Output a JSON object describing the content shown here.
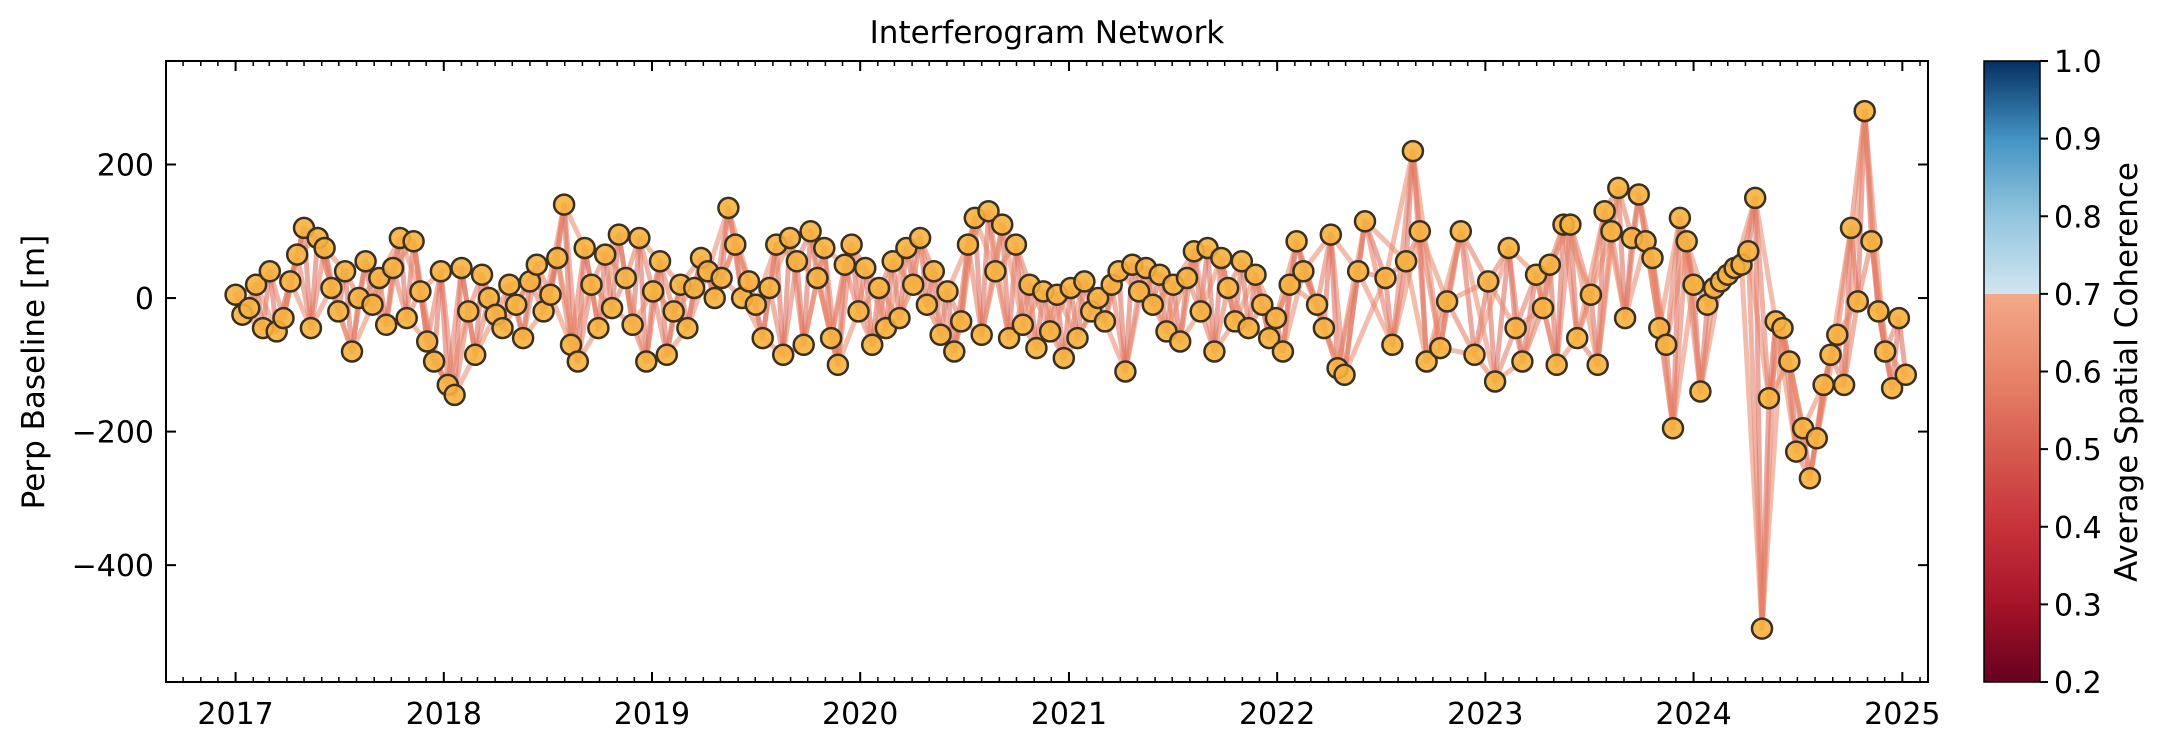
{
  "chart_data": {
    "type": "scatter",
    "title": "Interferogram Network",
    "xlabel": "",
    "ylabel": "Perp Baseline [m]",
    "x_tick_labels": [
      "2017",
      "2018",
      "2019",
      "2020",
      "2021",
      "2022",
      "2023",
      "2024",
      "2025"
    ],
    "y_tick_labels": [
      "200",
      "0",
      "−200",
      "−400"
    ],
    "y_ticks": [
      200,
      0,
      -200,
      -400
    ],
    "xlim": [
      "2016-09-01",
      "2025-02-15"
    ],
    "ylim": [
      -575,
      355
    ],
    "grid": false,
    "colorbar": {
      "label": "Average Spatial Coherence",
      "range": [
        0.2,
        1.0
      ],
      "tick_labels": [
        "1.0",
        "0.9",
        "0.8",
        "0.7",
        "0.6",
        "0.5",
        "0.4",
        "0.3",
        "0.2"
      ],
      "ticks": [
        1.0,
        0.9,
        0.8,
        0.7,
        0.6,
        0.5,
        0.4,
        0.3,
        0.2
      ],
      "colormap": "RdBu",
      "visible_threshold": 0.7,
      "colormap_stops": [
        {
          "value": 0.2,
          "color": "#67001f"
        },
        {
          "value": 0.3,
          "color": "#a51429"
        },
        {
          "value": 0.4,
          "color": "#c8323a"
        },
        {
          "value": 0.5,
          "color": "#d65c4f"
        },
        {
          "value": 0.6,
          "color": "#e8866a"
        },
        {
          "value": 0.7,
          "color": "#f4a98b"
        },
        {
          "value": 0.7,
          "color": "#d1e5f0"
        },
        {
          "value": 0.8,
          "color": "#92c5de"
        },
        {
          "value": 0.9,
          "color": "#4393c3"
        },
        {
          "value": 1.0,
          "color": "#053061"
        }
      ]
    },
    "marker_color": "#f7b13e",
    "marker_edge_color": "#3a3020",
    "acquisitions": [
      {
        "date": "2017-01-01",
        "baseline": 5
      },
      {
        "date": "2017-01-13",
        "baseline": -25
      },
      {
        "date": "2017-01-25",
        "baseline": -15
      },
      {
        "date": "2017-02-06",
        "baseline": 20
      },
      {
        "date": "2017-02-18",
        "baseline": -45
      },
      {
        "date": "2017-03-02",
        "baseline": 40
      },
      {
        "date": "2017-03-14",
        "baseline": -50
      },
      {
        "date": "2017-03-26",
        "baseline": -30
      },
      {
        "date": "2017-04-07",
        "baseline": 25
      },
      {
        "date": "2017-04-19",
        "baseline": 65
      },
      {
        "date": "2017-05-01",
        "baseline": 105
      },
      {
        "date": "2017-05-13",
        "baseline": -45
      },
      {
        "date": "2017-05-25",
        "baseline": 90
      },
      {
        "date": "2017-06-06",
        "baseline": 75
      },
      {
        "date": "2017-06-18",
        "baseline": 15
      },
      {
        "date": "2017-06-30",
        "baseline": -20
      },
      {
        "date": "2017-07-12",
        "baseline": 40
      },
      {
        "date": "2017-07-24",
        "baseline": -80
      },
      {
        "date": "2017-08-05",
        "baseline": 0
      },
      {
        "date": "2017-08-17",
        "baseline": 55
      },
      {
        "date": "2017-08-29",
        "baseline": -10
      },
      {
        "date": "2017-09-10",
        "baseline": 30
      },
      {
        "date": "2017-09-22",
        "baseline": -40
      },
      {
        "date": "2017-10-04",
        "baseline": 45
      },
      {
        "date": "2017-10-16",
        "baseline": 90
      },
      {
        "date": "2017-10-28",
        "baseline": -30
      },
      {
        "date": "2017-11-09",
        "baseline": 85
      },
      {
        "date": "2017-11-21",
        "baseline": 10
      },
      {
        "date": "2017-12-03",
        "baseline": -65
      },
      {
        "date": "2017-12-15",
        "baseline": -95
      },
      {
        "date": "2017-12-27",
        "baseline": 40
      },
      {
        "date": "2018-01-08",
        "baseline": -130
      },
      {
        "date": "2018-01-20",
        "baseline": -145
      },
      {
        "date": "2018-02-01",
        "baseline": 45
      },
      {
        "date": "2018-02-13",
        "baseline": -20
      },
      {
        "date": "2018-02-25",
        "baseline": -85
      },
      {
        "date": "2018-03-09",
        "baseline": 35
      },
      {
        "date": "2018-03-21",
        "baseline": 0
      },
      {
        "date": "2018-04-02",
        "baseline": -25
      },
      {
        "date": "2018-04-14",
        "baseline": -45
      },
      {
        "date": "2018-04-26",
        "baseline": 20
      },
      {
        "date": "2018-05-08",
        "baseline": -10
      },
      {
        "date": "2018-05-20",
        "baseline": -60
      },
      {
        "date": "2018-06-01",
        "baseline": 25
      },
      {
        "date": "2018-06-13",
        "baseline": 50
      },
      {
        "date": "2018-06-25",
        "baseline": -20
      },
      {
        "date": "2018-07-07",
        "baseline": 5
      },
      {
        "date": "2018-07-19",
        "baseline": 60
      },
      {
        "date": "2018-07-31",
        "baseline": 140
      },
      {
        "date": "2018-08-12",
        "baseline": -70
      },
      {
        "date": "2018-08-24",
        "baseline": -95
      },
      {
        "date": "2018-09-05",
        "baseline": 75
      },
      {
        "date": "2018-09-17",
        "baseline": 20
      },
      {
        "date": "2018-09-29",
        "baseline": -45
      },
      {
        "date": "2018-10-11",
        "baseline": 65
      },
      {
        "date": "2018-10-23",
        "baseline": -15
      },
      {
        "date": "2018-11-04",
        "baseline": 95
      },
      {
        "date": "2018-11-16",
        "baseline": 30
      },
      {
        "date": "2018-11-28",
        "baseline": -40
      },
      {
        "date": "2018-12-10",
        "baseline": 90
      },
      {
        "date": "2018-12-22",
        "baseline": -95
      },
      {
        "date": "2019-01-03",
        "baseline": 10
      },
      {
        "date": "2019-01-15",
        "baseline": 55
      },
      {
        "date": "2019-01-27",
        "baseline": -85
      },
      {
        "date": "2019-02-08",
        "baseline": -20
      },
      {
        "date": "2019-02-20",
        "baseline": 20
      },
      {
        "date": "2019-03-04",
        "baseline": -45
      },
      {
        "date": "2019-03-16",
        "baseline": 15
      },
      {
        "date": "2019-03-28",
        "baseline": 60
      },
      {
        "date": "2019-04-09",
        "baseline": 40
      },
      {
        "date": "2019-04-21",
        "baseline": 0
      },
      {
        "date": "2019-05-03",
        "baseline": 30
      },
      {
        "date": "2019-05-15",
        "baseline": 135
      },
      {
        "date": "2019-05-27",
        "baseline": 80
      },
      {
        "date": "2019-06-08",
        "baseline": 0
      },
      {
        "date": "2019-06-20",
        "baseline": 25
      },
      {
        "date": "2019-07-02",
        "baseline": -10
      },
      {
        "date": "2019-07-14",
        "baseline": -60
      },
      {
        "date": "2019-07-26",
        "baseline": 15
      },
      {
        "date": "2019-08-07",
        "baseline": 80
      },
      {
        "date": "2019-08-19",
        "baseline": -85
      },
      {
        "date": "2019-08-31",
        "baseline": 90
      },
      {
        "date": "2019-09-12",
        "baseline": 55
      },
      {
        "date": "2019-09-24",
        "baseline": -70
      },
      {
        "date": "2019-10-06",
        "baseline": 100
      },
      {
        "date": "2019-10-18",
        "baseline": 30
      },
      {
        "date": "2019-10-30",
        "baseline": 75
      },
      {
        "date": "2019-11-11",
        "baseline": -60
      },
      {
        "date": "2019-11-23",
        "baseline": -100
      },
      {
        "date": "2019-12-05",
        "baseline": 50
      },
      {
        "date": "2019-12-17",
        "baseline": 80
      },
      {
        "date": "2019-12-29",
        "baseline": -20
      },
      {
        "date": "2020-01-10",
        "baseline": 45
      },
      {
        "date": "2020-01-22",
        "baseline": -70
      },
      {
        "date": "2020-02-03",
        "baseline": 15
      },
      {
        "date": "2020-02-15",
        "baseline": -45
      },
      {
        "date": "2020-02-27",
        "baseline": 55
      },
      {
        "date": "2020-03-10",
        "baseline": -30
      },
      {
        "date": "2020-03-22",
        "baseline": 75
      },
      {
        "date": "2020-04-03",
        "baseline": 20
      },
      {
        "date": "2020-04-15",
        "baseline": 90
      },
      {
        "date": "2020-04-27",
        "baseline": -10
      },
      {
        "date": "2020-05-09",
        "baseline": 40
      },
      {
        "date": "2020-05-21",
        "baseline": -55
      },
      {
        "date": "2020-06-02",
        "baseline": 10
      },
      {
        "date": "2020-06-14",
        "baseline": -80
      },
      {
        "date": "2020-06-26",
        "baseline": -35
      },
      {
        "date": "2020-07-08",
        "baseline": 80
      },
      {
        "date": "2020-07-20",
        "baseline": 120
      },
      {
        "date": "2020-08-01",
        "baseline": -55
      },
      {
        "date": "2020-08-13",
        "baseline": 130
      },
      {
        "date": "2020-08-25",
        "baseline": 40
      },
      {
        "date": "2020-09-06",
        "baseline": 110
      },
      {
        "date": "2020-09-18",
        "baseline": -60
      },
      {
        "date": "2020-09-30",
        "baseline": 80
      },
      {
        "date": "2020-10-12",
        "baseline": -40
      },
      {
        "date": "2020-10-24",
        "baseline": 20
      },
      {
        "date": "2020-11-05",
        "baseline": -75
      },
      {
        "date": "2020-11-17",
        "baseline": 10
      },
      {
        "date": "2020-11-29",
        "baseline": -50
      },
      {
        "date": "2020-12-11",
        "baseline": 5
      },
      {
        "date": "2020-12-23",
        "baseline": -90
      },
      {
        "date": "2021-01-04",
        "baseline": 15
      },
      {
        "date": "2021-01-16",
        "baseline": -60
      },
      {
        "date": "2021-01-28",
        "baseline": 25
      },
      {
        "date": "2021-02-09",
        "baseline": -20
      },
      {
        "date": "2021-02-21",
        "baseline": 0
      },
      {
        "date": "2021-03-05",
        "baseline": -35
      },
      {
        "date": "2021-03-17",
        "baseline": 20
      },
      {
        "date": "2021-03-29",
        "baseline": 40
      },
      {
        "date": "2021-04-10",
        "baseline": -110
      },
      {
        "date": "2021-04-22",
        "baseline": 50
      },
      {
        "date": "2021-05-04",
        "baseline": 10
      },
      {
        "date": "2021-05-16",
        "baseline": 45
      },
      {
        "date": "2021-05-28",
        "baseline": -10
      },
      {
        "date": "2021-06-09",
        "baseline": 35
      },
      {
        "date": "2021-06-21",
        "baseline": -50
      },
      {
        "date": "2021-07-03",
        "baseline": 20
      },
      {
        "date": "2021-07-15",
        "baseline": -65
      },
      {
        "date": "2021-07-27",
        "baseline": 30
      },
      {
        "date": "2021-08-08",
        "baseline": 70
      },
      {
        "date": "2021-08-20",
        "baseline": -20
      },
      {
        "date": "2021-09-01",
        "baseline": 75
      },
      {
        "date": "2021-09-13",
        "baseline": -80
      },
      {
        "date": "2021-09-25",
        "baseline": 60
      },
      {
        "date": "2021-10-07",
        "baseline": 15
      },
      {
        "date": "2021-10-19",
        "baseline": -35
      },
      {
        "date": "2021-10-31",
        "baseline": 55
      },
      {
        "date": "2021-11-12",
        "baseline": -45
      },
      {
        "date": "2021-11-24",
        "baseline": 35
      },
      {
        "date": "2021-12-06",
        "baseline": -10
      },
      {
        "date": "2021-12-18",
        "baseline": -60
      },
      {
        "date": "2021-12-30",
        "baseline": -30
      },
      {
        "date": "2022-01-11",
        "baseline": -80
      },
      {
        "date": "2022-01-23",
        "baseline": 20
      },
      {
        "date": "2022-02-04",
        "baseline": 85
      },
      {
        "date": "2022-02-16",
        "baseline": 40
      },
      {
        "date": "2022-03-12",
        "baseline": -10
      },
      {
        "date": "2022-03-24",
        "baseline": -45
      },
      {
        "date": "2022-04-05",
        "baseline": 95
      },
      {
        "date": "2022-04-17",
        "baseline": -105
      },
      {
        "date": "2022-04-29",
        "baseline": -115
      },
      {
        "date": "2022-05-23",
        "baseline": 40
      },
      {
        "date": "2022-06-04",
        "baseline": 115
      },
      {
        "date": "2022-07-10",
        "baseline": 30
      },
      {
        "date": "2022-07-22",
        "baseline": -70
      },
      {
        "date": "2022-08-15",
        "baseline": 55
      },
      {
        "date": "2022-08-27",
        "baseline": 220
      },
      {
        "date": "2022-09-08",
        "baseline": 100
      },
      {
        "date": "2022-09-20",
        "baseline": -95
      },
      {
        "date": "2022-10-14",
        "baseline": -75
      },
      {
        "date": "2022-10-26",
        "baseline": -5
      },
      {
        "date": "2022-11-19",
        "baseline": 100
      },
      {
        "date": "2022-12-13",
        "baseline": -85
      },
      {
        "date": "2023-01-06",
        "baseline": 25
      },
      {
        "date": "2023-01-18",
        "baseline": -125
      },
      {
        "date": "2023-02-11",
        "baseline": 75
      },
      {
        "date": "2023-02-23",
        "baseline": -45
      },
      {
        "date": "2023-03-07",
        "baseline": -95
      },
      {
        "date": "2023-03-31",
        "baseline": 35
      },
      {
        "date": "2023-04-12",
        "baseline": -15
      },
      {
        "date": "2023-04-24",
        "baseline": 50
      },
      {
        "date": "2023-05-06",
        "baseline": -100
      },
      {
        "date": "2023-05-18",
        "baseline": 110
      },
      {
        "date": "2023-05-30",
        "baseline": 110
      },
      {
        "date": "2023-06-11",
        "baseline": -60
      },
      {
        "date": "2023-07-05",
        "baseline": 5
      },
      {
        "date": "2023-07-17",
        "baseline": -100
      },
      {
        "date": "2023-07-29",
        "baseline": 130
      },
      {
        "date": "2023-08-10",
        "baseline": 100
      },
      {
        "date": "2023-08-22",
        "baseline": 165
      },
      {
        "date": "2023-09-03",
        "baseline": -30
      },
      {
        "date": "2023-09-15",
        "baseline": 90
      },
      {
        "date": "2023-09-27",
        "baseline": 155
      },
      {
        "date": "2023-10-09",
        "baseline": 85
      },
      {
        "date": "2023-10-21",
        "baseline": 60
      },
      {
        "date": "2023-11-02",
        "baseline": -45
      },
      {
        "date": "2023-11-14",
        "baseline": -70
      },
      {
        "date": "2023-11-26",
        "baseline": -195
      },
      {
        "date": "2023-12-08",
        "baseline": 120
      },
      {
        "date": "2023-12-20",
        "baseline": 85
      },
      {
        "date": "2024-01-01",
        "baseline": 20
      },
      {
        "date": "2024-01-13",
        "baseline": -140
      },
      {
        "date": "2024-01-25",
        "baseline": -10
      },
      {
        "date": "2024-02-06",
        "baseline": 15
      },
      {
        "date": "2024-02-18",
        "baseline": 25
      },
      {
        "date": "2024-03-01",
        "baseline": 35
      },
      {
        "date": "2024-03-13",
        "baseline": 45
      },
      {
        "date": "2024-03-25",
        "baseline": 50
      },
      {
        "date": "2024-04-06",
        "baseline": 70
      },
      {
        "date": "2024-04-18",
        "baseline": 150
      },
      {
        "date": "2024-04-30",
        "baseline": -495
      },
      {
        "date": "2024-05-12",
        "baseline": -150
      },
      {
        "date": "2024-05-24",
        "baseline": -35
      },
      {
        "date": "2024-06-05",
        "baseline": -45
      },
      {
        "date": "2024-06-17",
        "baseline": -95
      },
      {
        "date": "2024-06-29",
        "baseline": -230
      },
      {
        "date": "2024-07-11",
        "baseline": -195
      },
      {
        "date": "2024-07-23",
        "baseline": -270
      },
      {
        "date": "2024-08-04",
        "baseline": -210
      },
      {
        "date": "2024-08-16",
        "baseline": -130
      },
      {
        "date": "2024-08-28",
        "baseline": -85
      },
      {
        "date": "2024-09-09",
        "baseline": -55
      },
      {
        "date": "2024-09-21",
        "baseline": -130
      },
      {
        "date": "2024-10-03",
        "baseline": 105
      },
      {
        "date": "2024-10-15",
        "baseline": -5
      },
      {
        "date": "2024-10-27",
        "baseline": 280
      },
      {
        "date": "2024-11-08",
        "baseline": 85
      },
      {
        "date": "2024-11-20",
        "baseline": -20
      },
      {
        "date": "2024-12-02",
        "baseline": -80
      },
      {
        "date": "2024-12-14",
        "baseline": -135
      },
      {
        "date": "2024-12-26",
        "baseline": -30
      },
      {
        "date": "2025-01-07",
        "baseline": -115
      }
    ],
    "pair_temporal_span": [
      1,
      2,
      3
    ],
    "pair_coherence": [
      0.52,
      0.56,
      0.6
    ]
  }
}
